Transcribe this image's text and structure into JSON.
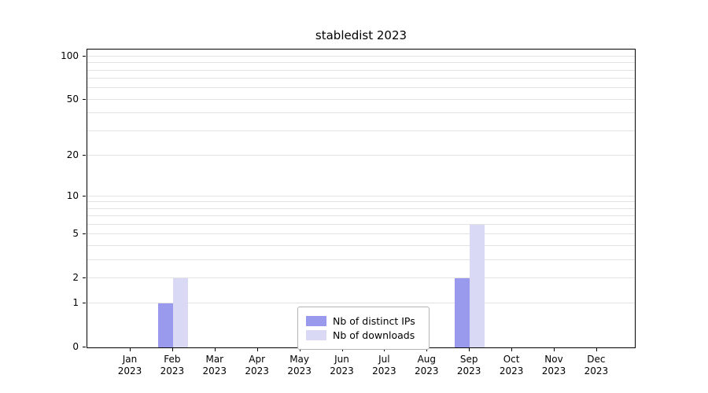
{
  "title": "stabledist 2023",
  "chart_data": {
    "type": "bar",
    "title": "stabledist 2023",
    "categories": [
      "Jan 2023",
      "Feb 2023",
      "Mar 2023",
      "Apr 2023",
      "May 2023",
      "Jun 2023",
      "Jul 2023",
      "Aug 2023",
      "Sep 2023",
      "Oct 2023",
      "Nov 2023",
      "Dec 2023"
    ],
    "series": [
      {
        "name": "Nb of distinct IPs",
        "color": "#9999ee",
        "values": [
          0,
          1,
          0,
          0,
          0,
          0,
          0,
          0,
          2,
          0,
          0,
          0
        ]
      },
      {
        "name": "Nb of downloads",
        "color": "#d9d9f6",
        "values": [
          0,
          2,
          0,
          0,
          0,
          0,
          0,
          0,
          6,
          0,
          0,
          0
        ]
      }
    ],
    "scale": "log1p",
    "axis_max": 112,
    "ylim": [
      0,
      112
    ],
    "ytick_labels": [
      100,
      50,
      20,
      10,
      5,
      2,
      1,
      0
    ],
    "grid_values": [
      1,
      2,
      3,
      4,
      5,
      6,
      7,
      8,
      9,
      10,
      20,
      30,
      40,
      50,
      60,
      70,
      80,
      90,
      100
    ],
    "grid": true,
    "legend_position": "bottom-center",
    "xlabel": "",
    "ylabel": ""
  }
}
